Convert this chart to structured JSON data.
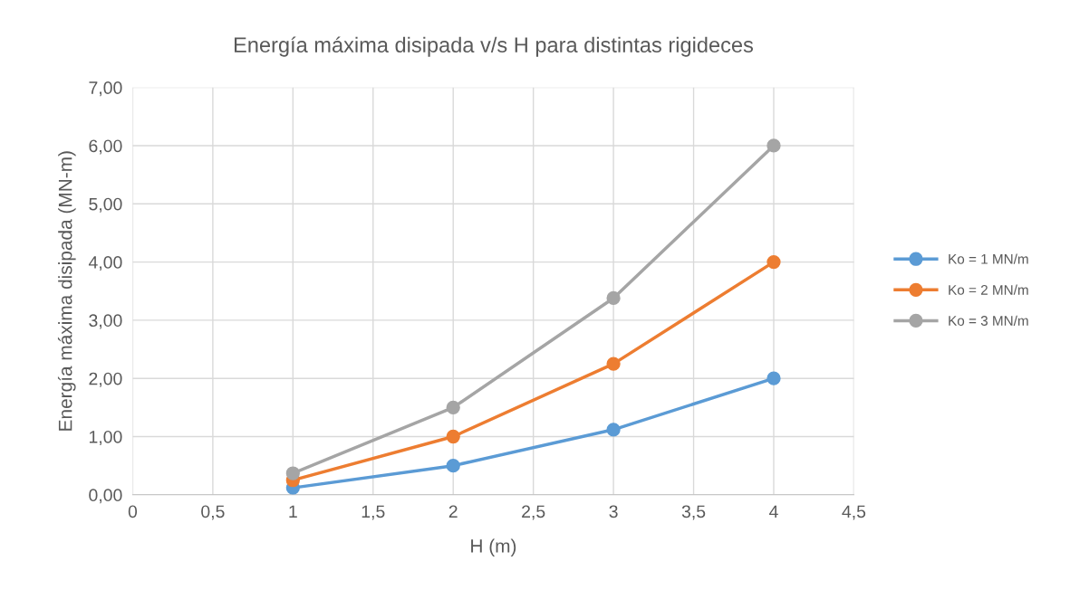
{
  "chart_data": {
    "type": "line",
    "title": "Energía máxima disipada v/s H para distintas rigideces",
    "xlabel": "H (m)",
    "ylabel": "Energía máxima disipada (MN-m)",
    "x": [
      1,
      2,
      3,
      4
    ],
    "series": [
      {
        "name": "Ko = 1 MN/m",
        "color": "#5b9bd5",
        "values": [
          0.12,
          0.5,
          1.12,
          2.0
        ]
      },
      {
        "name": "Ko = 2 MN/m",
        "color": "#ed7d31",
        "values": [
          0.25,
          1.0,
          2.25,
          4.0
        ]
      },
      {
        "name": "Ko = 3 MN/m",
        "color": "#a5a5a5",
        "values": [
          0.37,
          1.5,
          3.38,
          6.0
        ]
      }
    ],
    "xlim": [
      0,
      4.5
    ],
    "xticks": [
      0,
      {
        "value": 0.5,
        "label": "0,5"
      },
      1,
      {
        "value": 1.5,
        "label": "1,5"
      },
      2,
      {
        "value": 2.5,
        "label": "2,5"
      },
      3,
      {
        "value": 3.5,
        "label": "3,5"
      },
      4,
      {
        "value": 4.5,
        "label": "4,5"
      }
    ],
    "ylim": [
      0,
      7
    ],
    "yticks": [
      {
        "value": 0,
        "label": "0,00"
      },
      {
        "value": 1,
        "label": "1,00"
      },
      {
        "value": 2,
        "label": "2,00"
      },
      {
        "value": 3,
        "label": "3,00"
      },
      {
        "value": 4,
        "label": "4,00"
      },
      {
        "value": 5,
        "label": "5,00"
      },
      {
        "value": 6,
        "label": "6,00"
      },
      {
        "value": 7,
        "label": "7,00"
      }
    ],
    "grid": true,
    "legend": "right",
    "marker": "circle",
    "line_style": "solid"
  }
}
